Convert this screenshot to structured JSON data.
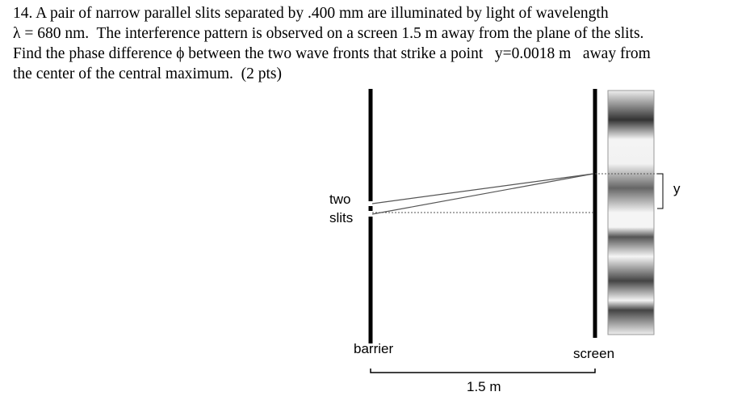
{
  "problem": {
    "lines": [
      "14. A pair of narrow parallel slits separated by .400 mm are illuminated by light of wavelength",
      "λ = 680 nm.  The interference pattern is observed on a screen 1.5 m away from the plane of the slits.",
      "Find the phase difference ϕ between the two wave fronts that strike a point   y=0.0018 m   away from",
      "the center of the central maximum.  (2 pts)"
    ]
  },
  "diagram": {
    "slits_label_1": "two",
    "slits_label_2": "slits",
    "barrier_label": "barrier",
    "screen_label": "screen",
    "y_label": "y",
    "distance_label": "1.5 m"
  }
}
